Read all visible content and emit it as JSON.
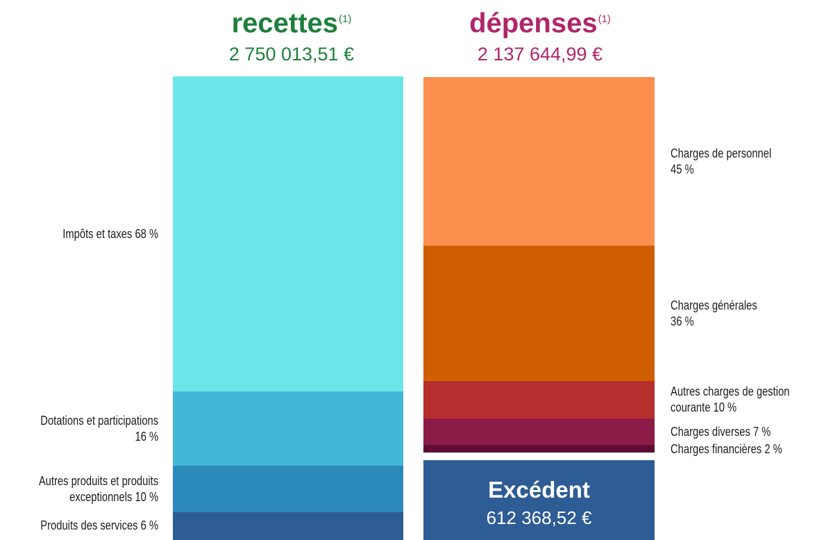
{
  "headers": {
    "recettes": {
      "title": "recettes",
      "note": "(1)",
      "amount": "2 750 013,51 €"
    },
    "depenses": {
      "title": "dépenses",
      "note": "(1)",
      "amount": "2 137 644,99 €"
    }
  },
  "chart_data": {
    "type": "bar",
    "recettes": [
      {
        "name": "Impôts et taxes",
        "percent": 68,
        "label_lines": [
          "Impôts et taxes   68 %"
        ],
        "color": "#6ce5e9"
      },
      {
        "name": "Dotations et participations",
        "percent": 16,
        "label_lines": [
          "Dotations et participations",
          "16 %"
        ],
        "color": "#42b7d6"
      },
      {
        "name": "Autres produits et produits exceptionnels",
        "percent": 10,
        "label_lines": [
          "Autres produits et produits",
          "exceptionnels   10 %"
        ],
        "color": "#2b8ab9"
      },
      {
        "name": "Produits des services",
        "percent": 6,
        "label_lines": [
          "Produits des services   6 %"
        ],
        "color": "#2e5c95"
      }
    ],
    "depenses": [
      {
        "name": "Charges de personnel",
        "percent": 45,
        "label_lines": [
          "Charges de personnel",
          "45 %"
        ],
        "color": "#fb8f4d"
      },
      {
        "name": "Charges générales",
        "percent": 36,
        "label_lines": [
          "Charges générales",
          "36 %"
        ],
        "color": "#cf5e03"
      },
      {
        "name": "Autres charges de gestion courante",
        "percent": 10,
        "label_lines": [
          "Autres charges de gestion",
          "courante   10 %"
        ],
        "color": "#b72e2e"
      },
      {
        "name": "Charges diverses",
        "percent": 7,
        "label_lines": [
          "Charges diverses  7 %"
        ],
        "color": "#8b1b47"
      },
      {
        "name": "Charges financières",
        "percent": 2,
        "label_lines": [
          "Charges financières    2 %"
        ],
        "color": "#5e0d34"
      }
    ],
    "excedent": {
      "title": "Excédent",
      "amount": "612 368,52 €"
    }
  }
}
